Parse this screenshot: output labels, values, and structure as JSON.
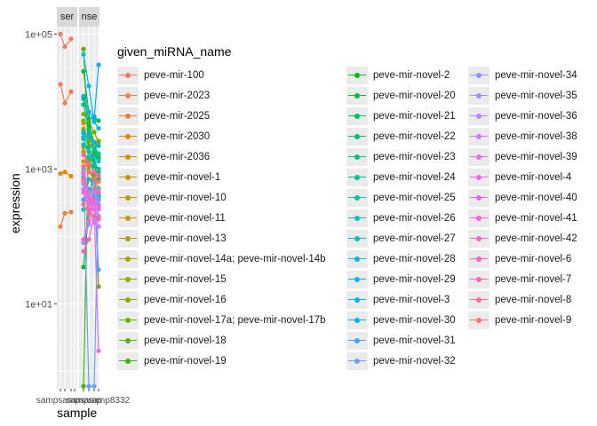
{
  "chart_data": {
    "type": "line",
    "xlabel": "sample",
    "ylabel": "expression",
    "y_scale": "log10",
    "ylim": [
      0.55,
      180000
    ],
    "y_ticks": [
      "1e+01",
      "1e+03",
      "1e+05"
    ],
    "y_tick_values": [
      10,
      1000,
      100000
    ],
    "facets": [
      {
        "strip": "ser",
        "x_tick_label": "sampsampsamp",
        "series_note": "mir"
      },
      {
        "strip": "nse",
        "x_tick_label": "sampsamp8332",
        "series_note": "novel"
      }
    ],
    "facet_x": [
      1,
      2,
      3,
      4
    ],
    "legend_title": "given_miRNA_name",
    "series": [
      {
        "name": "peve-mir-100",
        "color": "#F8766D",
        "facet": 0,
        "values": [
          100000,
          65000,
          85000
        ]
      },
      {
        "name": "peve-mir-2023",
        "color": "#F37B59",
        "facet": 0,
        "values": [
          18000,
          9500,
          14000
        ]
      },
      {
        "name": "peve-mir-2025",
        "color": "#EC8239",
        "facet": 0,
        "values": [
          140,
          220,
          230
        ]
      },
      {
        "name": "peve-mir-2030",
        "color": "#E58700",
        "facet": 0,
        "values": [
          850,
          900,
          780
        ]
      },
      {
        "name": "peve-mir-2036",
        "color": "#DC8D00",
        "facet": 1,
        "values": [
          4800,
          2200,
          1200,
          900
        ]
      },
      {
        "name": "peve-mir-novel-1",
        "color": "#D29200",
        "facet": 1,
        "values": [
          1800,
          950,
          700,
          520
        ]
      },
      {
        "name": "peve-mir-novel-10",
        "color": "#C99800",
        "facet": 1,
        "values": [
          1300,
          1100,
          650,
          420
        ]
      },
      {
        "name": "peve-mir-novel-11",
        "color": "#BE9C00",
        "facet": 1,
        "values": [
          900,
          1500,
          800,
          650
        ]
      },
      {
        "name": "peve-mir-novel-13",
        "color": "#B3A000",
        "facet": 1,
        "values": [
          650,
          430,
          500,
          380
        ]
      },
      {
        "name": "peve-mir-novel-14a; peve-mir-novel-14b",
        "color": "#A5A400",
        "facet": 1,
        "values": [
          2100,
          1100,
          1700,
          1500
        ]
      },
      {
        "name": "peve-mir-novel-15",
        "color": "#97A800",
        "facet": 1,
        "values": [
          3900,
          2600,
          1900,
          2600
        ]
      },
      {
        "name": "peve-mir-novel-16",
        "color": "#86AC00",
        "facet": 1,
        "values": [
          5200,
          4300,
          2400,
          1500
        ]
      },
      {
        "name": "peve-mir-novel-17a; peve-mir-novel-17b",
        "color": "#72B000",
        "facet": 1,
        "values": [
          6500,
          5000,
          3500,
          2500
        ]
      },
      {
        "name": "peve-mir-novel-18",
        "color": "#5BB300",
        "facet": 1,
        "values": [
          60000,
          1400,
          900,
          18
        ]
      },
      {
        "name": "peve-mir-novel-19",
        "color": "#39B600",
        "facet": 1,
        "values": [
          0.6,
          4500,
          2500,
          1500
        ]
      },
      {
        "name": "peve-mir-novel-2",
        "color": "#00B81F",
        "facet": 1,
        "values": [
          35,
          250,
          1500,
          800
        ]
      },
      {
        "name": "peve-mir-novel-20",
        "color": "#00BA42",
        "facet": 1,
        "values": [
          28000,
          7000,
          1100,
          700
        ]
      },
      {
        "name": "peve-mir-novel-21",
        "color": "#00BC5C",
        "facet": 1,
        "values": [
          11000,
          5500,
          6000,
          5200
        ]
      },
      {
        "name": "peve-mir-novel-22",
        "color": "#00BE71",
        "facet": 1,
        "values": [
          9000,
          3800,
          1800,
          1400
        ]
      },
      {
        "name": "peve-mir-novel-23",
        "color": "#00BF84",
        "facet": 1,
        "values": [
          3400,
          2100,
          1100,
          900
        ]
      },
      {
        "name": "peve-mir-novel-24",
        "color": "#00C096",
        "facet": 1,
        "values": [
          2800,
          3200,
          2000,
          1700
        ]
      },
      {
        "name": "peve-mir-novel-25",
        "color": "#00C0A7",
        "facet": 1,
        "values": [
          3000,
          1500,
          1200,
          1000
        ]
      },
      {
        "name": "peve-mir-novel-26",
        "color": "#00C0B7",
        "facet": 1,
        "values": [
          250,
          700,
          600,
          400
        ]
      },
      {
        "name": "peve-mir-novel-27",
        "color": "#00BEC6",
        "facet": 1,
        "values": [
          2300,
          1800,
          1500,
          1300
        ]
      },
      {
        "name": "peve-mir-novel-28",
        "color": "#00BCD5",
        "facet": 1,
        "values": [
          750,
          500,
          400,
          350
        ]
      },
      {
        "name": "peve-mir-novel-29",
        "color": "#00B8E3",
        "facet": 1,
        "values": [
          50000,
          17000,
          5000,
          4000
        ]
      },
      {
        "name": "peve-mir-novel-3",
        "color": "#00B4EF",
        "facet": 1,
        "values": [
          3500,
          3000,
          2500,
          2200
        ]
      },
      {
        "name": "peve-mir-novel-30",
        "color": "#00AEFA",
        "facet": 1,
        "values": [
          12000,
          7000,
          5500,
          35000
        ]
      },
      {
        "name": "peve-mir-novel-31",
        "color": "#3DA7FF",
        "facet": 1,
        "values": [
          350,
          450,
          500,
          32
        ]
      },
      {
        "name": "peve-mir-novel-32",
        "color": "#6E9FFF",
        "facet": 1,
        "values": [
          1000,
          0.6,
          0.6,
          500
        ]
      },
      {
        "name": "peve-mir-novel-34",
        "color": "#8F96FF",
        "facet": 1,
        "values": [
          80,
          150,
          600,
          300
        ]
      },
      {
        "name": "peve-mir-novel-35",
        "color": "#AA8CFF",
        "facet": 1,
        "values": [
          600,
          300,
          500,
          250
        ]
      },
      {
        "name": "peve-mir-novel-36",
        "color": "#C082FF",
        "facet": 1,
        "values": [
          500,
          450,
          250,
          200
        ]
      },
      {
        "name": "peve-mir-novel-38",
        "color": "#D378FF",
        "facet": 1,
        "values": [
          300,
          220,
          160,
          140
        ]
      },
      {
        "name": "peve-mir-novel-39",
        "color": "#E26EF7",
        "facet": 1,
        "values": [
          1100,
          400,
          300,
          260
        ]
      },
      {
        "name": "peve-mir-novel-4",
        "color": "#ED68ED",
        "facet": 1,
        "values": [
          850,
          350,
          250,
          2
        ]
      },
      {
        "name": "peve-mir-novel-40",
        "color": "#F564E3",
        "facet": 1,
        "values": [
          450,
          250,
          200,
          190
        ]
      },
      {
        "name": "peve-mir-novel-41",
        "color": "#FB61D7",
        "facet": 1,
        "values": [
          90,
          170,
          350,
          280
        ]
      },
      {
        "name": "peve-mir-novel-42",
        "color": "#FF61C9",
        "facet": 1,
        "values": [
          60,
          90,
          200,
          180
        ]
      },
      {
        "name": "peve-mir-novel-6",
        "color": "#FF63BB",
        "facet": 1,
        "values": [
          1600,
          1200,
          900,
          800
        ]
      },
      {
        "name": "peve-mir-novel-7",
        "color": "#FF67AC",
        "facet": 1,
        "values": [
          700,
          250,
          500,
          450
        ]
      },
      {
        "name": "peve-mir-novel-8",
        "color": "#FF6C9B",
        "facet": 1,
        "values": [
          300,
          220,
          200,
          180
        ]
      },
      {
        "name": "peve-mir-novel-9",
        "color": "#FC717F",
        "facet": 1,
        "values": [
          1100,
          900,
          700,
          650
        ]
      }
    ]
  }
}
